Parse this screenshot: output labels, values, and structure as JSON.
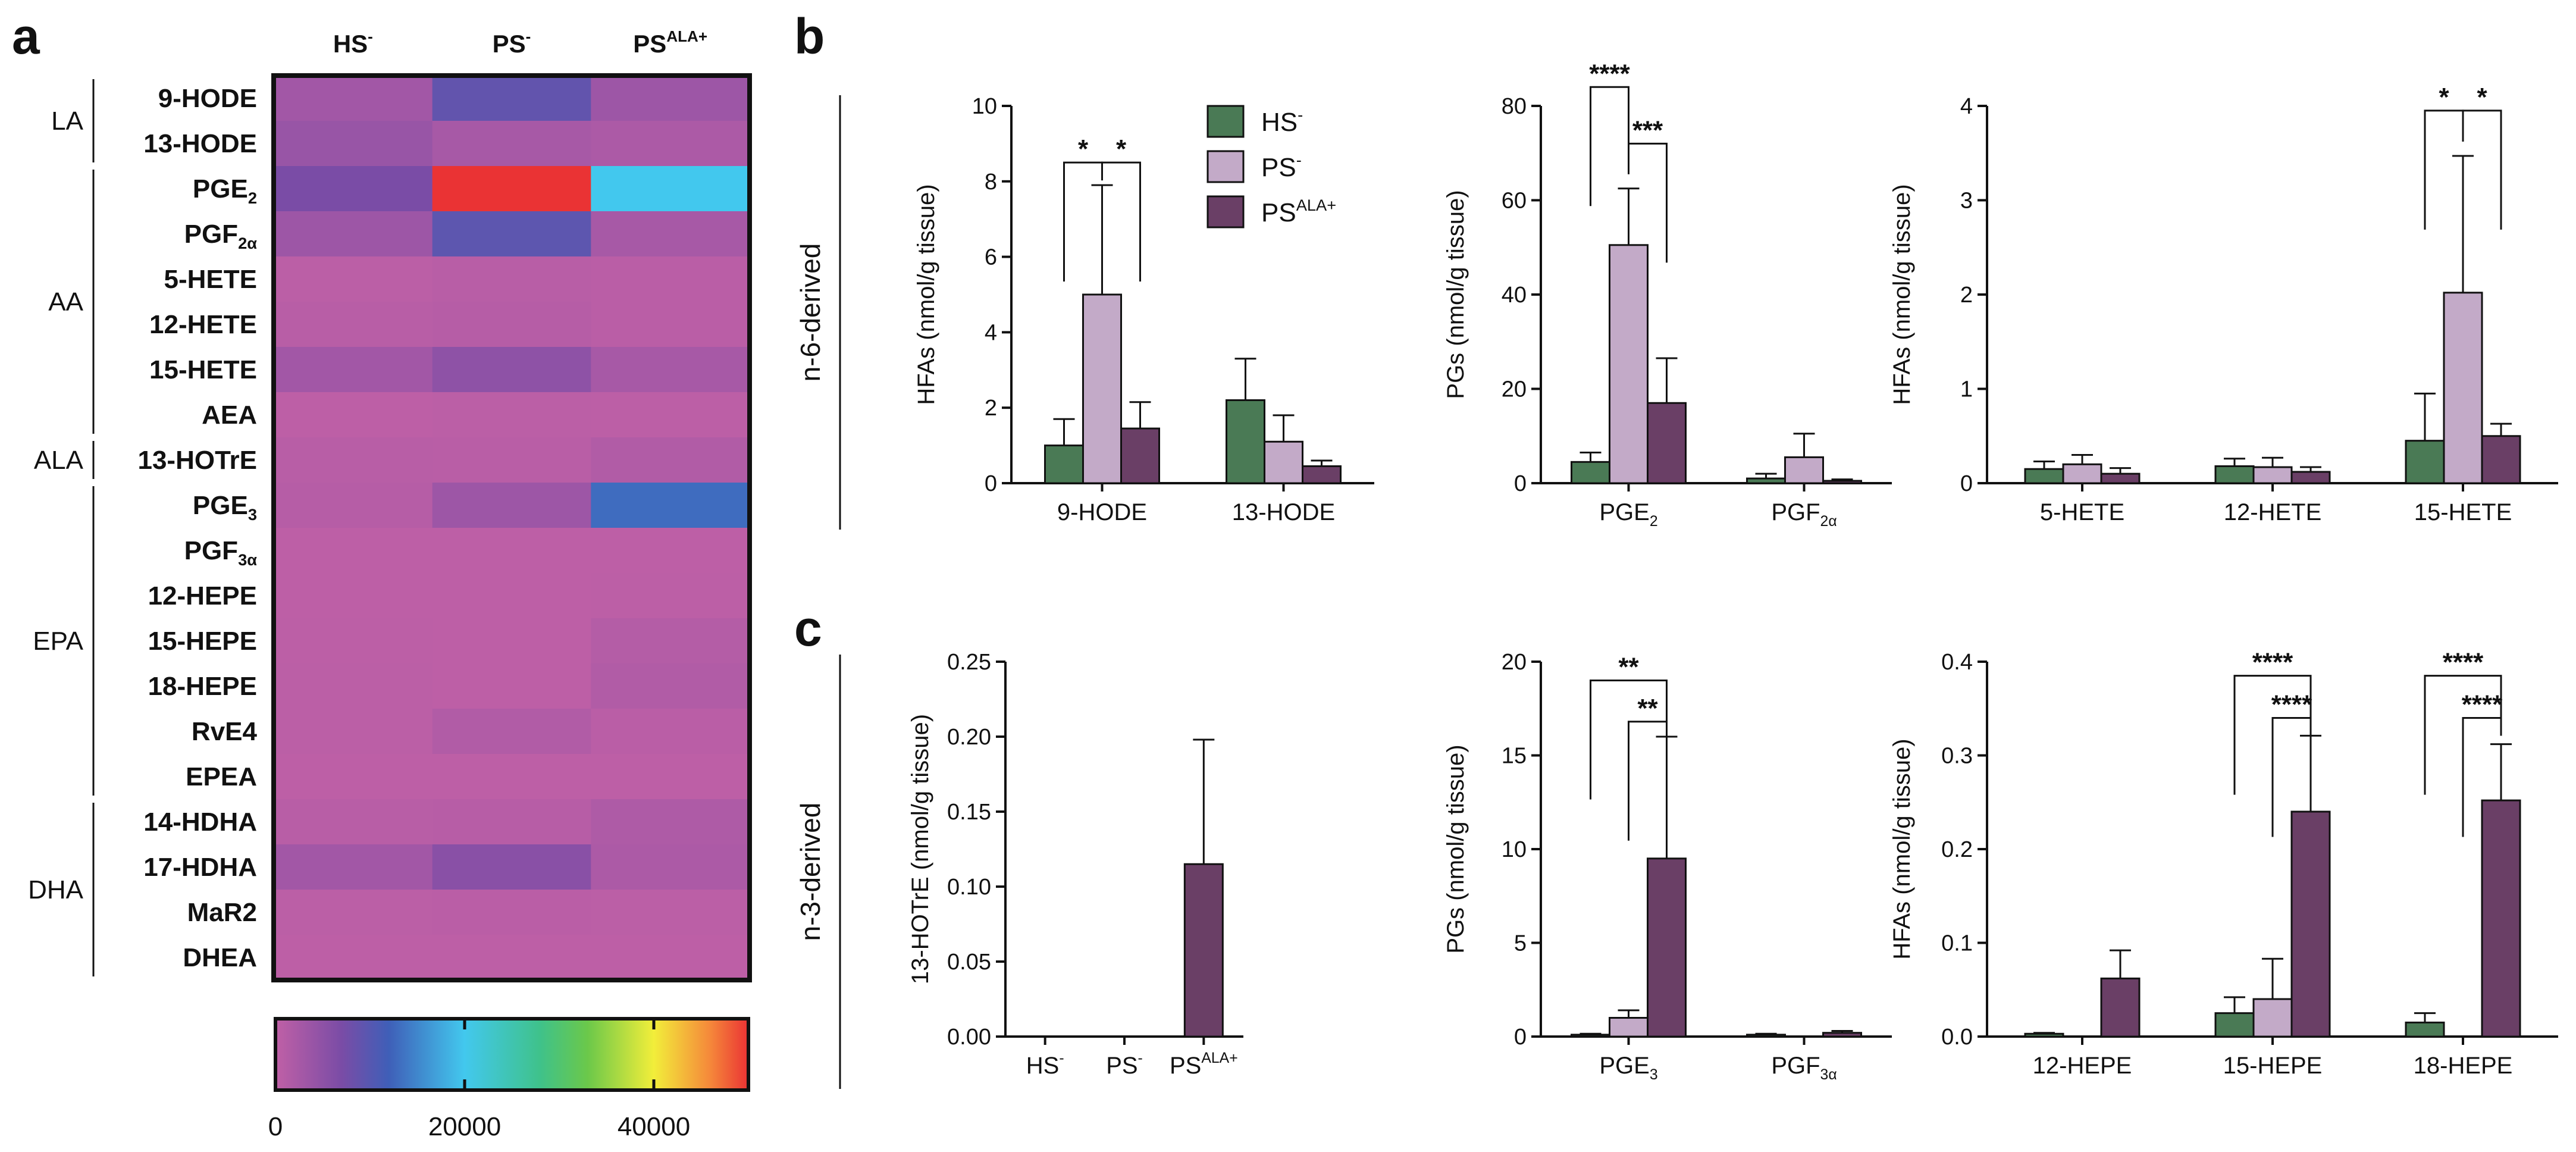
{
  "panels": {
    "a": "a",
    "b": "b",
    "c": "c"
  },
  "heatmap": {
    "columns": [
      {
        "base": "HS",
        "sup": "-"
      },
      {
        "base": "PS",
        "sup": "-"
      },
      {
        "base": "PS",
        "sup": "ALA+"
      }
    ],
    "rows": [
      {
        "base": "9-HODE",
        "sub": ""
      },
      {
        "base": "13-HODE",
        "sub": ""
      },
      {
        "base": "PGE",
        "sub": "2"
      },
      {
        "base": "PGF",
        "sub": "2α"
      },
      {
        "base": "5-HETE",
        "sub": ""
      },
      {
        "base": "12-HETE",
        "sub": ""
      },
      {
        "base": "15-HETE",
        "sub": ""
      },
      {
        "base": "AEA",
        "sub": ""
      },
      {
        "base": "13-HOTrE",
        "sub": ""
      },
      {
        "base": "PGE",
        "sub": "3"
      },
      {
        "base": "PGF",
        "sub": "3α"
      },
      {
        "base": "12-HEPE",
        "sub": ""
      },
      {
        "base": "15-HEPE",
        "sub": ""
      },
      {
        "base": "18-HEPE",
        "sub": ""
      },
      {
        "base": "RvE4",
        "sub": ""
      },
      {
        "base": "EPEA",
        "sub": ""
      },
      {
        "base": "14-HDHA",
        "sub": ""
      },
      {
        "base": "17-HDHA",
        "sub": ""
      },
      {
        "base": "MaR2",
        "sub": ""
      },
      {
        "base": "DHEA",
        "sub": ""
      }
    ],
    "groups": [
      {
        "label": "LA",
        "start": 0,
        "end": 1
      },
      {
        "label": "AA",
        "start": 2,
        "end": 7
      },
      {
        "label": "ALA",
        "start": 8,
        "end": 8
      },
      {
        "label": "EPA",
        "start": 9,
        "end": 15
      },
      {
        "label": "DHA",
        "start": 16,
        "end": 19
      }
    ],
    "values": [
      [
        3000,
        9000,
        3500
      ],
      [
        4000,
        2500,
        2000
      ],
      [
        7000,
        50000,
        20000
      ],
      [
        3500,
        9500,
        2500
      ],
      [
        500,
        800,
        600
      ],
      [
        800,
        1000,
        600
      ],
      [
        3000,
        5000,
        2500
      ],
      [
        300,
        500,
        400
      ],
      [
        800,
        700,
        1500
      ],
      [
        1000,
        3500,
        13000
      ],
      [
        300,
        300,
        300
      ],
      [
        300,
        300,
        400
      ],
      [
        400,
        300,
        1200
      ],
      [
        500,
        300,
        1500
      ],
      [
        500,
        1500,
        600
      ],
      [
        300,
        300,
        300
      ],
      [
        800,
        900,
        1800
      ],
      [
        3000,
        5500,
        2000
      ],
      [
        500,
        600,
        500
      ],
      [
        300,
        300,
        300
      ]
    ],
    "colorbar": {
      "min": 0,
      "max": 50000,
      "ticks": [
        "0",
        "20000",
        "40000"
      ],
      "tick_values": [
        0,
        20000,
        40000
      ]
    }
  },
  "sides": {
    "b": "n-6-derived",
    "c": "n-3-derived"
  },
  "legend": [
    {
      "base": "HS",
      "sup": "-",
      "color": "#4a7a55"
    },
    {
      "base": "PS",
      "sup": "-",
      "color": "#c3aac8"
    },
    {
      "base": "PS",
      "sup": "ALA+",
      "color": "#6a3f66"
    }
  ],
  "chart_data": [
    {
      "type": "bar",
      "id": "b1",
      "ylabel": "HFAs (nmol/g tissue)",
      "ylim": [
        0,
        10
      ],
      "yticks": [
        "0",
        "2",
        "4",
        "6",
        "8",
        "10"
      ],
      "ytick_values": [
        0,
        2,
        4,
        6,
        8,
        10
      ],
      "categories": [
        {
          "base": "9-HODE",
          "sub": ""
        },
        {
          "base": "13-HODE",
          "sub": ""
        }
      ],
      "series": [
        {
          "name": "HS-",
          "values": [
            1.0,
            2.2
          ],
          "errors": [
            0.7,
            1.1
          ]
        },
        {
          "name": "PS-",
          "values": [
            5.0,
            1.1
          ],
          "errors": [
            2.9,
            0.7
          ]
        },
        {
          "name": "PSALA+",
          "values": [
            1.45,
            0.45
          ],
          "errors": [
            0.7,
            0.15
          ]
        }
      ],
      "significance": [
        {
          "from": [
            0,
            0
          ],
          "to": [
            0,
            1
          ],
          "label": "*",
          "level": 8.5
        },
        {
          "from": [
            0,
            1
          ],
          "to": [
            0,
            2
          ],
          "label": "*",
          "level": 8.5
        }
      ]
    },
    {
      "type": "bar",
      "id": "b2",
      "ylabel": "PGs (nmol/g tissue)",
      "ylim": [
        0,
        80
      ],
      "yticks": [
        "0",
        "20",
        "40",
        "60",
        "80"
      ],
      "ytick_values": [
        0,
        20,
        40,
        60,
        80
      ],
      "categories": [
        {
          "base": "PGE",
          "sub": "2"
        },
        {
          "base": "PGF",
          "sub": "2α"
        }
      ],
      "series": [
        {
          "name": "HS-",
          "values": [
            4.5,
            1.0
          ],
          "errors": [
            2.0,
            1.0
          ]
        },
        {
          "name": "PS-",
          "values": [
            50.5,
            5.5
          ],
          "errors": [
            12.0,
            5.0
          ]
        },
        {
          "name": "PSALA+",
          "values": [
            17.0,
            0.5
          ],
          "errors": [
            9.5,
            0.3
          ]
        }
      ],
      "significance": [
        {
          "from": [
            0,
            0
          ],
          "to": [
            0,
            1
          ],
          "label": "****",
          "level": 84
        },
        {
          "from": [
            0,
            1
          ],
          "to": [
            0,
            2
          ],
          "label": "***",
          "level": 72
        }
      ]
    },
    {
      "type": "bar",
      "id": "b3",
      "ylabel": "HFAs (nmol/g tissue)",
      "ylim": [
        0,
        4
      ],
      "yticks": [
        "0",
        "1",
        "2",
        "3",
        "4"
      ],
      "ytick_values": [
        0,
        1,
        2,
        3,
        4
      ],
      "categories": [
        {
          "base": "5-HETE",
          "sub": ""
        },
        {
          "base": "12-HETE",
          "sub": ""
        },
        {
          "base": "15-HETE",
          "sub": ""
        }
      ],
      "series": [
        {
          "name": "HS-",
          "values": [
            0.15,
            0.18,
            0.45
          ],
          "errors": [
            0.08,
            0.08,
            0.5
          ]
        },
        {
          "name": "PS-",
          "values": [
            0.2,
            0.17,
            2.02
          ],
          "errors": [
            0.1,
            0.1,
            1.45
          ]
        },
        {
          "name": "PSALA+",
          "values": [
            0.1,
            0.12,
            0.5
          ],
          "errors": [
            0.06,
            0.05,
            0.13
          ]
        }
      ],
      "significance": [
        {
          "from": [
            2,
            0
          ],
          "to": [
            2,
            1
          ],
          "label": "*",
          "level": 3.95
        },
        {
          "from": [
            2,
            1
          ],
          "to": [
            2,
            2
          ],
          "label": "*",
          "level": 3.95
        }
      ]
    },
    {
      "type": "bar",
      "id": "c1",
      "ylabel": "13-HOTrE (nmol/g tissue)",
      "ylim": [
        0,
        0.25
      ],
      "yticks": [
        "0.00",
        "0.05",
        "0.10",
        "0.15",
        "0.20",
        "0.25"
      ],
      "ytick_values": [
        0,
        0.05,
        0.1,
        0.15,
        0.2,
        0.25
      ],
      "categories": [
        {
          "base": "HS",
          "sup": "-"
        },
        {
          "base": "PS",
          "sup": "-"
        },
        {
          "base": "PS",
          "sup": "ALA+"
        }
      ],
      "series": [
        {
          "name": "13-HOTrE",
          "values": [
            0,
            0,
            0.115
          ],
          "errors": [
            0,
            0,
            0.083
          ]
        }
      ],
      "significance": []
    },
    {
      "type": "bar",
      "id": "c2",
      "ylabel": "PGs (nmol/g tissue)",
      "ylim": [
        0,
        20
      ],
      "yticks": [
        "0",
        "5",
        "10",
        "15",
        "20"
      ],
      "ytick_values": [
        0,
        5,
        10,
        15,
        20
      ],
      "categories": [
        {
          "base": "PGE",
          "sub": "3"
        },
        {
          "base": "PGF",
          "sub": "3α"
        }
      ],
      "series": [
        {
          "name": "HS-",
          "values": [
            0.1,
            0.1
          ],
          "errors": [
            0.05,
            0.05
          ]
        },
        {
          "name": "PS-",
          "values": [
            1.0,
            0.0
          ],
          "errors": [
            0.4,
            0.0
          ]
        },
        {
          "name": "PSALA+",
          "values": [
            9.5,
            0.2
          ],
          "errors": [
            6.5,
            0.1
          ]
        }
      ],
      "significance": [
        {
          "from": [
            0,
            0
          ],
          "to": [
            0,
            2
          ],
          "label": "**",
          "level": 19.0
        },
        {
          "from": [
            0,
            1
          ],
          "to": [
            0,
            2
          ],
          "label": "**",
          "level": 16.8
        }
      ]
    },
    {
      "type": "bar",
      "id": "c3",
      "ylabel": "HFAs (nmol/g tissue)",
      "ylim": [
        0,
        0.4
      ],
      "yticks": [
        "0.0",
        "0.1",
        "0.2",
        "0.3",
        "0.4"
      ],
      "ytick_values": [
        0,
        0.1,
        0.2,
        0.3,
        0.4
      ],
      "categories": [
        {
          "base": "12-HEPE",
          "sub": ""
        },
        {
          "base": "15-HEPE",
          "sub": ""
        },
        {
          "base": "18-HEPE",
          "sub": ""
        }
      ],
      "series": [
        {
          "name": "HS-",
          "values": [
            0.003,
            0.025,
            0.015
          ],
          "errors": [
            0.001,
            0.017,
            0.01
          ]
        },
        {
          "name": "PS-",
          "values": [
            0,
            0.04,
            0
          ],
          "errors": [
            0,
            0.043,
            0
          ]
        },
        {
          "name": "PSALA+",
          "values": [
            0.062,
            0.24,
            0.252
          ],
          "errors": [
            0.03,
            0.081,
            0.06
          ]
        }
      ],
      "significance": [
        {
          "from": [
            1,
            0
          ],
          "to": [
            1,
            2
          ],
          "label": "****",
          "level": 0.385
        },
        {
          "from": [
            1,
            1
          ],
          "to": [
            1,
            2
          ],
          "label": "****",
          "level": 0.34
        },
        {
          "from": [
            2,
            0
          ],
          "to": [
            2,
            2
          ],
          "label": "****",
          "level": 0.385
        },
        {
          "from": [
            2,
            1
          ],
          "to": [
            2,
            2
          ],
          "label": "****",
          "level": 0.34
        }
      ]
    }
  ]
}
